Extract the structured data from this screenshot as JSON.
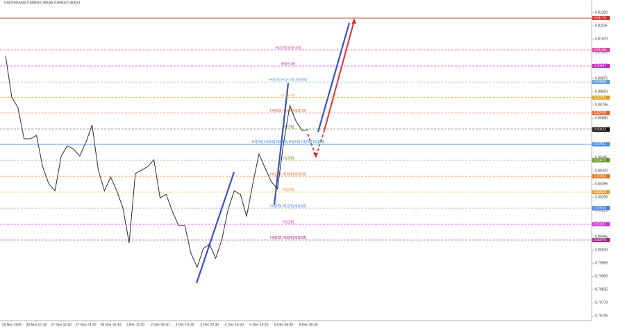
{
  "chart_data": {
    "type": "line",
    "title": "USDCHF,M30  0.80608 0.80625 0.80602 0.80623",
    "categories": [
      null,
      "25 Nov 2025",
      null,
      null,
      null,
      "26 Nov 07:30",
      null,
      null,
      null,
      "27 Nov 02:30",
      null,
      null,
      null,
      "27 Nov 21:30",
      null,
      null,
      null,
      "28 Nov 16:30",
      null,
      null,
      null,
      "1 Dec 11:30",
      null,
      null,
      null,
      "2 Dec 06:30",
      null,
      null,
      null,
      "3 Dec 01:30",
      null,
      null,
      null,
      "3 Dec 20:30",
      null,
      null,
      null,
      "4 Dec 15:30",
      null,
      null,
      null,
      "5 Dec 10:30",
      null,
      null,
      null,
      "8 Dec 05:30",
      null,
      null,
      null,
      "9 Dec 00:30"
    ],
    "series": [
      {
        "name": "USDCHF",
        "color": "#2b2b2b",
        "values": [
          0.80988,
          0.80783,
          0.80732,
          0.80578,
          0.80578,
          0.80595,
          0.80441,
          0.80356,
          0.80322,
          0.80493,
          0.80544,
          0.80527,
          0.80493,
          0.80561,
          0.80646,
          0.80424,
          0.80322,
          0.8039,
          0.80322,
          0.80236,
          0.80065,
          0.80407,
          0.80424,
          0.80441,
          0.80475,
          0.80287,
          0.80304,
          0.80219,
          0.80151,
          0.80151,
          0.80014,
          0.79945,
          0.80038,
          0.80058,
          0.7999,
          0.80082,
          0.80229,
          0.80322,
          0.80304,
          0.80195,
          0.80356,
          0.80503,
          0.80434,
          0.80366,
          0.80332,
          0.80561,
          0.80742,
          0.80664,
          0.80619,
          0.80623
        ]
      }
    ],
    "ylim": [
      0.79682,
      0.81262
    ],
    "yticks": [
      {
        "value": 0.812,
        "label": "0.81200"
      },
      0.81135,
      {
        "value": 0.8107,
        "label": "0.81070"
      },
      0.81005,
      {
        "value": 0.8094,
        "label": "0.80940"
      },
      0.80875,
      {
        "value": 0.8081,
        "label": "0.80810"
      },
      0.80745,
      {
        "value": 0.8068,
        "label": "0.80680"
      },
      0.80615,
      {
        "value": 0.8055,
        "label": "0.80550"
      },
      0.80485,
      {
        "value": 0.8042,
        "label": "0.80420"
      },
      0.80355,
      {
        "value": 0.8029,
        "label": "0.80290"
      },
      0.80225,
      {
        "value": 0.8016,
        "label": "0.80160"
      },
      0.80095,
      {
        "value": 0.8003,
        "label": "0.80030"
      },
      0.79965,
      {
        "value": 0.799,
        "label": "0.79900"
      },
      0.79835,
      {
        "value": 0.7977,
        "label": "0.79770"
      },
      0.79705
    ],
    "levels": [
      {
        "value": 0.81173,
        "color": "#c0392b",
        "style": "solid"
      },
      {
        "label": "H4[7/8] M3[+2/8]",
        "value": 0.81016,
        "color": "#d04aa0",
        "style": "dash"
      },
      {
        "label": "M3[+1/8]",
        "value": 0.80937,
        "color": "#d020c0",
        "style": "dash"
      },
      {
        "label": "H4[6/8] H1[+2/8] M3[8/8]",
        "value": 0.80858,
        "color": "#5a9bd5",
        "style": "dash"
      },
      {
        "label": "H1[+1/8]",
        "value": 0.80781,
        "color": "#e0a020",
        "style": "dash"
      },
      {
        "label": "H4[5/8] H1[8/8] M3[7/8]",
        "value": 0.80705,
        "color": "#e06030",
        "style": "dash"
      },
      {
        "label": "H1[7/8]",
        "value": 0.80626,
        "color": "#556b2f",
        "style": "dash"
      },
      {
        "label": "H4[4/8] H1[6/8] M3[6/8] H4[4/8] H1[6/8] M3[6/8]",
        "value": 0.80551,
        "color": "#3c8ddc",
        "style": "solid"
      },
      {
        "label": "H1[5/8]",
        "value": 0.80472,
        "color": "#6b8e23",
        "style": "dash"
      },
      {
        "label": "H4[3/8] H1[4/8] M3[5/8]",
        "value": 0.80393,
        "color": "#e07020",
        "style": "dash"
      },
      {
        "label": "H1[3/8]",
        "value": 0.80315,
        "color": "#e0a030",
        "style": "dash"
      },
      {
        "label": "H4[2/8] H1[2/8] M3[4/8]",
        "value": 0.80236,
        "color": "#4a7fd0",
        "style": "dash"
      },
      {
        "label": "H1[1/8]",
        "value": 0.80157,
        "color": "#d030d0",
        "style": "dash"
      },
      {
        "label": "H4[1/8] H1[0/8] M3[2/8]",
        "value": 0.80079,
        "color": "#a02080",
        "style": "dash"
      }
    ]
  }
}
